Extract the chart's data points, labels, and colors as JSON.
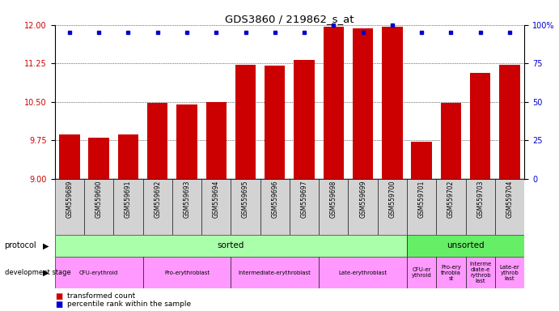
{
  "title": "GDS3860 / 219862_s_at",
  "samples": [
    "GSM559689",
    "GSM559690",
    "GSM559691",
    "GSM559692",
    "GSM559693",
    "GSM559694",
    "GSM559695",
    "GSM559696",
    "GSM559697",
    "GSM559698",
    "GSM559699",
    "GSM559700",
    "GSM559701",
    "GSM559702",
    "GSM559703",
    "GSM559704"
  ],
  "bar_values": [
    9.86,
    9.8,
    9.86,
    10.48,
    10.45,
    10.5,
    11.23,
    11.2,
    11.32,
    11.97,
    11.93,
    11.97,
    9.72,
    10.48,
    11.07,
    11.23
  ],
  "blue_dot_pct": [
    95,
    95,
    95,
    95,
    95,
    95,
    95,
    95,
    95,
    100,
    95,
    100,
    95,
    95,
    95,
    95
  ],
  "bar_color": "#cc0000",
  "dot_color": "#0000cc",
  "ylim_left": [
    9,
    12
  ],
  "ylim_right": [
    0,
    100
  ],
  "yticks_left": [
    9,
    9.75,
    10.5,
    11.25,
    12
  ],
  "yticks_right": [
    0,
    25,
    50,
    75,
    100
  ],
  "bg_color": "#ffffff",
  "tick_color_left": "#cc0000",
  "tick_color_right": "#0000cc",
  "gray_bg": "#d3d3d3",
  "sorted_color": "#aaffaa",
  "unsorted_color": "#66ee66",
  "dev_color": "#ff99ff",
  "protocol_row": [
    {
      "label": "sorted",
      "start": 0,
      "end": 11
    },
    {
      "label": "unsorted",
      "start": 12,
      "end": 15
    }
  ],
  "dev_rows": [
    {
      "label": "CFU-erythroid",
      "start": 0,
      "end": 2
    },
    {
      "label": "Pro-erythroblast",
      "start": 3,
      "end": 5
    },
    {
      "label": "Intermediate-erythroblast",
      "start": 6,
      "end": 8
    },
    {
      "label": "Late-erythroblast",
      "start": 9,
      "end": 11
    },
    {
      "label": "CFU-er\nythroid",
      "start": 12,
      "end": 12
    },
    {
      "label": "Pro-ery\nthrobla\nst",
      "start": 13,
      "end": 13
    },
    {
      "label": "Interme\ndiate-e\nrythrob\nlast",
      "start": 14,
      "end": 14
    },
    {
      "label": "Late-er\nythrob\nlast",
      "start": 15,
      "end": 15
    }
  ]
}
